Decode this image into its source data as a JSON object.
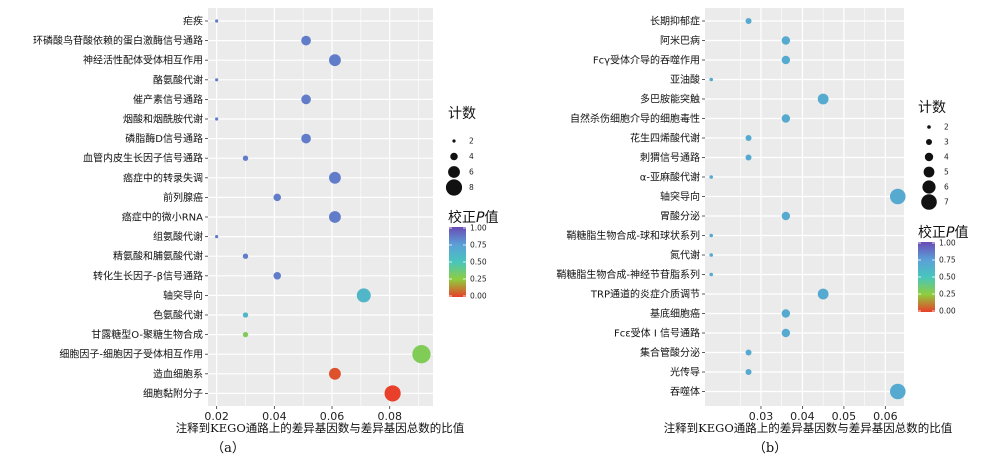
{
  "chart_data": [
    {
      "type": "scatter",
      "panel_label": "（a）",
      "xlabel": "注释到KEGO通路上的差异基因数与差异基因总数的比值",
      "x_ticks": [
        "0.02",
        "0.04",
        "0.06",
        "0.08"
      ],
      "xlim": [
        0.017,
        0.095
      ],
      "size_legend": {
        "title": "计数",
        "values": [
          2,
          4,
          6,
          8
        ],
        "labels": [
          "2",
          "4",
          "6",
          "8"
        ]
      },
      "color_legend": {
        "title_prefix": "校正",
        "title_italic": "P",
        "title_suffix": "值",
        "range": [
          0,
          1
        ],
        "ticks": [
          "1.00",
          "0.75",
          "0.50",
          "0.25",
          "0.00"
        ]
      },
      "points": [
        {
          "label": "疟疾",
          "x": 0.02,
          "count": 2,
          "padj": 0.85
        },
        {
          "label": "环磷酸鸟苷酸依赖的蛋白激酶信号通路",
          "x": 0.051,
          "count": 5,
          "padj": 0.85
        },
        {
          "label": "神经活性配体受体相互作用",
          "x": 0.061,
          "count": 6,
          "padj": 0.85
        },
        {
          "label": "酪氨酸代谢",
          "x": 0.02,
          "count": 2,
          "padj": 0.85
        },
        {
          "label": "催产素信号通路",
          "x": 0.051,
          "count": 5,
          "padj": 0.85
        },
        {
          "label": "烟酸和烟酰胺代谢",
          "x": 0.02,
          "count": 2,
          "padj": 0.85
        },
        {
          "label": "磷脂酶D信号通路",
          "x": 0.051,
          "count": 5,
          "padj": 0.85
        },
        {
          "label": "血管内皮生长因子信号通路",
          "x": 0.03,
          "count": 3,
          "padj": 0.85
        },
        {
          "label": "癌症中的转录失调",
          "x": 0.061,
          "count": 6,
          "padj": 0.85
        },
        {
          "label": "前列腺癌",
          "x": 0.041,
          "count": 4,
          "padj": 0.85
        },
        {
          "label": "癌症中的微小RNA",
          "x": 0.061,
          "count": 6,
          "padj": 0.85
        },
        {
          "label": "组氨酸代谢",
          "x": 0.02,
          "count": 2,
          "padj": 0.85
        },
        {
          "label": "精氨酸和脯氨酸代谢",
          "x": 0.03,
          "count": 3,
          "padj": 0.85
        },
        {
          "label": "转化生长因子-β信号通路",
          "x": 0.041,
          "count": 4,
          "padj": 0.85
        },
        {
          "label": "轴突导向",
          "x": 0.071,
          "count": 7,
          "padj": 0.6
        },
        {
          "label": "色氨酸代谢",
          "x": 0.03,
          "count": 3,
          "padj": 0.6
        },
        {
          "label": "甘露糖型O-聚糖生物合成",
          "x": 0.03,
          "count": 3,
          "padj": 0.3
        },
        {
          "label": "细胞因子-细胞因子受体相互作用",
          "x": 0.091,
          "count": 9,
          "padj": 0.3
        },
        {
          "label": "造血细胞系",
          "x": 0.061,
          "count": 6,
          "padj": 0.03
        },
        {
          "label": "细胞黏附分子",
          "x": 0.081,
          "count": 8,
          "padj": 0.0
        }
      ]
    },
    {
      "type": "scatter",
      "panel_label": "（b）",
      "xlabel": "注释到KEGO通路上的差异基因数与差异基因总数的比值",
      "x_ticks": [
        "0.03",
        "0.04",
        "0.05",
        "0.06"
      ],
      "xlim": [
        0.0165,
        0.0645
      ],
      "size_legend": {
        "title": "计数",
        "values": [
          2,
          3,
          4,
          5,
          6,
          7
        ],
        "labels": [
          "2",
          "3",
          "4",
          "5",
          "6",
          "7"
        ]
      },
      "color_legend": {
        "title_prefix": "校正",
        "title_italic": "P",
        "title_suffix": "值",
        "range": [
          0,
          1
        ],
        "ticks": [
          "1.00",
          "0.75",
          "0.50",
          "0.25",
          "0.00"
        ]
      },
      "points": [
        {
          "label": "长期抑郁症",
          "x": 0.027,
          "count": 3,
          "padj": 0.68
        },
        {
          "label": "阿米巴病",
          "x": 0.036,
          "count": 4,
          "padj": 0.68
        },
        {
          "label": "Fcγ受体介导的吞噬作用",
          "x": 0.036,
          "count": 4,
          "padj": 0.68
        },
        {
          "label": "亚油酸",
          "x": 0.018,
          "count": 2,
          "padj": 0.68
        },
        {
          "label": "多巴胺能突触",
          "x": 0.045,
          "count": 5,
          "padj": 0.68
        },
        {
          "label": "自然杀伤细胞介导的细胞毒性",
          "x": 0.036,
          "count": 4,
          "padj": 0.68
        },
        {
          "label": "花生四烯酸代谢",
          "x": 0.027,
          "count": 3,
          "padj": 0.68
        },
        {
          "label": "刺猬信号通路",
          "x": 0.027,
          "count": 3,
          "padj": 0.68
        },
        {
          "label": "α-亚麻酸代谢",
          "x": 0.018,
          "count": 2,
          "padj": 0.68
        },
        {
          "label": "轴突导向",
          "x": 0.063,
          "count": 7,
          "padj": 0.68
        },
        {
          "label": "胃酸分泌",
          "x": 0.036,
          "count": 4,
          "padj": 0.68
        },
        {
          "label": "鞘糖脂生物合成-球和球状系列",
          "x": 0.018,
          "count": 2,
          "padj": 0.68
        },
        {
          "label": "氮代谢",
          "x": 0.018,
          "count": 2,
          "padj": 0.68
        },
        {
          "label": "鞘糖脂生物合成-神经节苷脂系列",
          "x": 0.018,
          "count": 2,
          "padj": 0.68
        },
        {
          "label": "TRP通道的炎症介质调节",
          "x": 0.045,
          "count": 5,
          "padj": 0.68
        },
        {
          "label": "基底细胞癌",
          "x": 0.036,
          "count": 4,
          "padj": 0.68
        },
        {
          "label": "Fcε受体 I 信号通路",
          "x": 0.036,
          "count": 4,
          "padj": 0.68
        },
        {
          "label": "集合管酸分泌",
          "x": 0.027,
          "count": 3,
          "padj": 0.68
        },
        {
          "label": "光传导",
          "x": 0.027,
          "count": 3,
          "padj": 0.68
        },
        {
          "label": "吞噬体",
          "x": 0.063,
          "count": 7,
          "padj": 0.68
        }
      ]
    }
  ]
}
